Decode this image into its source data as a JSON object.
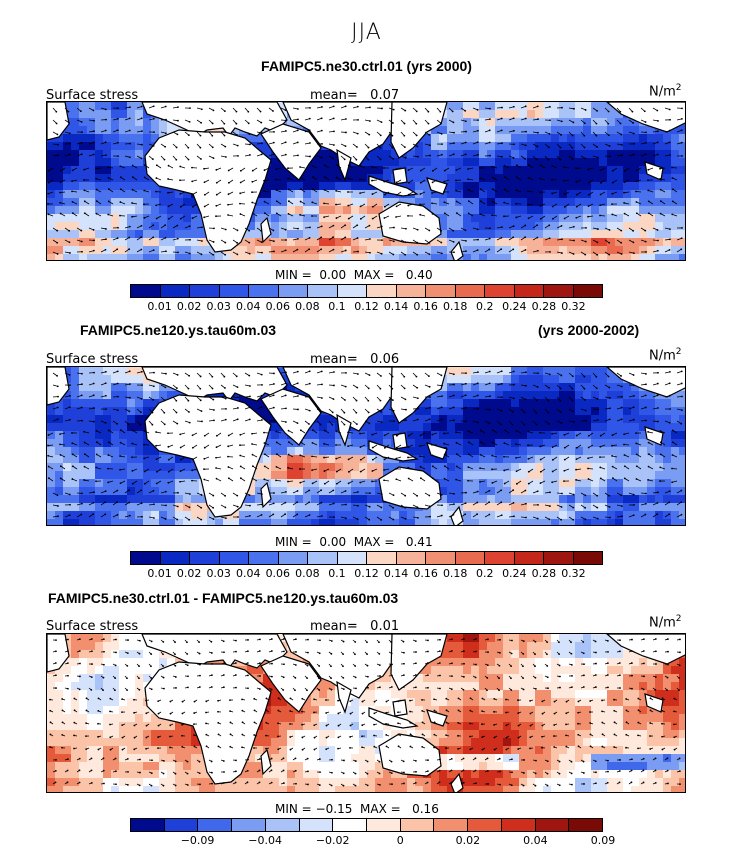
{
  "season": "JJA",
  "units_prefix": "N/m",
  "units_sup": "2",
  "mean_label": "mean=",
  "minmax": {
    "min_label": "MIN =",
    "max_label": "MAX ="
  },
  "panels": [
    {
      "title_left": "FAMIPC5.ne30.ctrl.01 (yrs 2000)",
      "title_right": "",
      "field": "Surface stress",
      "mean": "0.07",
      "min": "0.00",
      "max": "0.40",
      "palette": "abs",
      "ticks": [
        "0.01",
        "0.02",
        "0.03",
        "0.04",
        "0.06",
        "0.08",
        "0.1",
        "0.12",
        "0.14",
        "0.16",
        "0.18",
        "0.2",
        "0.24",
        "0.28",
        "0.32"
      ]
    },
    {
      "title_left": "FAMIPC5.ne120.ys.tau60m.03",
      "title_right": "(yrs 2000-2002)",
      "field": "Surface stress",
      "mean": "0.06",
      "min": "0.00",
      "max": "0.41",
      "palette": "abs",
      "ticks": [
        "0.01",
        "0.02",
        "0.03",
        "0.04",
        "0.06",
        "0.08",
        "0.1",
        "0.12",
        "0.14",
        "0.16",
        "0.18",
        "0.2",
        "0.24",
        "0.28",
        "0.32"
      ]
    },
    {
      "title_left": "FAMIPC5.ne30.ctrl.01 - FAMIPC5.ne120.ys.tau60m.03",
      "title_right": "",
      "field": "Surface stress",
      "mean": "0.01",
      "min": "−0.15",
      "max": "0.16",
      "palette": "diff",
      "ticks": [
        "−0.09",
        "−0.04",
        "−0.02",
        "0",
        "0.02",
        "0.04",
        "0.09"
      ]
    }
  ],
  "colors": {
    "abs": [
      "#000a8c",
      "#0a28c2",
      "#1e3fd8",
      "#2f56e6",
      "#4a72ee",
      "#7a9cf2",
      "#a9c2f7",
      "#d5e2fb",
      "#fbd6c3",
      "#f6b39a",
      "#f08f72",
      "#e86a4f",
      "#dd4330",
      "#c4261a",
      "#9f1510",
      "#7a0a06"
    ],
    "diff": [
      "#000a8c",
      "#1e3fd8",
      "#3f68ea",
      "#7a9cf2",
      "#a9c2f7",
      "#d5e2fb",
      "#ffffff",
      "#ffe9dc",
      "#fbc4a8",
      "#f18f6e",
      "#e45a3a",
      "#cf2e1d",
      "#9f1510",
      "#7a0a06"
    ]
  }
}
